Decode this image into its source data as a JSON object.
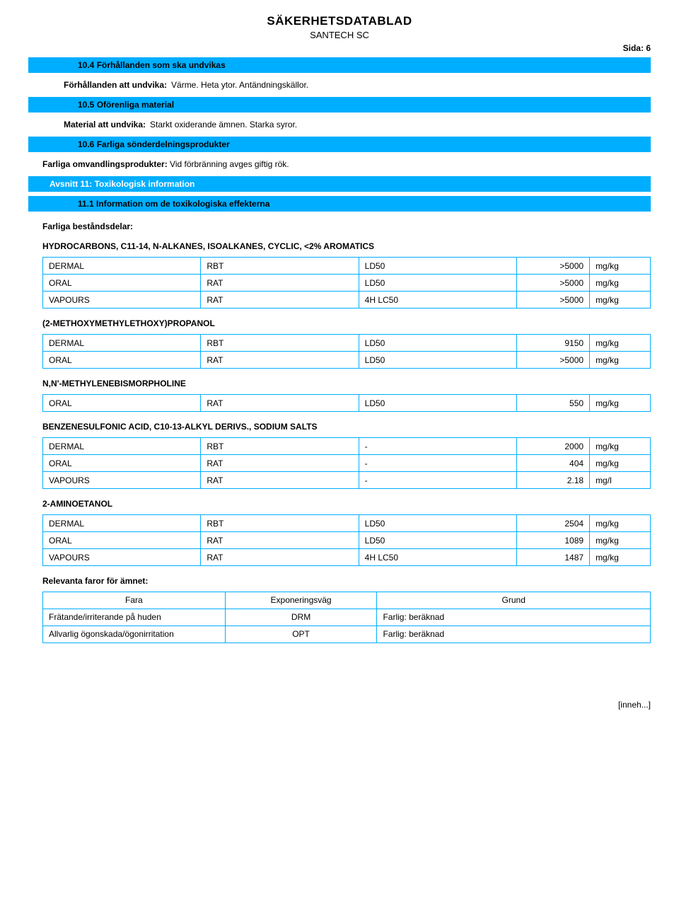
{
  "header": {
    "title": "SÄKERHETSDATABLAD",
    "subtitle": "SANTECH SC",
    "page_label": "Sida:",
    "page_number": "6"
  },
  "sections": {
    "s10_4": {
      "title": "10.4 Förhållanden som ska undvikas"
    },
    "s10_4_kv": {
      "label": "Förhållanden att undvika:",
      "value": "Värme. Heta ytor. Antändningskällor."
    },
    "s10_5": {
      "title": "10.5 Oförenliga material"
    },
    "s10_5_kv": {
      "label": "Material att undvika:",
      "value": "Starkt oxiderande ämnen. Starka syror."
    },
    "s10_6": {
      "title": "10.6 Farliga sönderdelningsprodukter"
    },
    "s10_6_kv": {
      "label": "Farliga omvandlingsprodukter:",
      "value": "Vid förbränning avges giftig rök."
    },
    "s11": {
      "title": "Avsnitt 11: Toxikologisk information"
    },
    "s11_1": {
      "title": "11.1 Information om de toxikologiska effekterna"
    }
  },
  "tox": {
    "components_label": "Farliga beståndsdelar:",
    "chemicals": [
      {
        "name": "HYDROCARBONS, C11-14, N-ALKANES, ISOALKANES, CYCLIC, <2% AROMATICS",
        "rows": [
          {
            "route": "DERMAL",
            "species": "RBT",
            "test": "LD50",
            "value": ">5000",
            "unit": "mg/kg"
          },
          {
            "route": "ORAL",
            "species": "RAT",
            "test": "LD50",
            "value": ">5000",
            "unit": "mg/kg"
          },
          {
            "route": "VAPOURS",
            "species": "RAT",
            "test": "4H LC50",
            "value": ">5000",
            "unit": "mg/kg"
          }
        ]
      },
      {
        "name": "(2-METHOXYMETHYLETHOXY)PROPANOL",
        "rows": [
          {
            "route": "DERMAL",
            "species": "RBT",
            "test": "LD50",
            "value": "9150",
            "unit": "mg/kg"
          },
          {
            "route": "ORAL",
            "species": "RAT",
            "test": "LD50",
            "value": ">5000",
            "unit": "mg/kg"
          }
        ]
      },
      {
        "name": "N,N'-METHYLENEBISMORPHOLINE",
        "rows": [
          {
            "route": "ORAL",
            "species": "RAT",
            "test": "LD50",
            "value": "550",
            "unit": "mg/kg"
          }
        ]
      },
      {
        "name": "BENZENESULFONIC ACID, C10-13-ALKYL DERIVS., SODIUM SALTS",
        "rows": [
          {
            "route": "DERMAL",
            "species": "RBT",
            "test": "-",
            "value": "2000",
            "unit": "mg/kg"
          },
          {
            "route": "ORAL",
            "species": "RAT",
            "test": "-",
            "value": "404",
            "unit": "mg/kg"
          },
          {
            "route": "VAPOURS",
            "species": "RAT",
            "test": "-",
            "value": "2.18",
            "unit": "mg/l"
          }
        ]
      },
      {
        "name": "2-AMINOETANOL",
        "rows": [
          {
            "route": "DERMAL",
            "species": "RBT",
            "test": "LD50",
            "value": "2504",
            "unit": "mg/kg"
          },
          {
            "route": "ORAL",
            "species": "RAT",
            "test": "LD50",
            "value": "1089",
            "unit": "mg/kg"
          },
          {
            "route": "VAPOURS",
            "species": "RAT",
            "test": "4H LC50",
            "value": "1487",
            "unit": "mg/kg"
          }
        ]
      }
    ],
    "hazard_label": "Relevanta faror för ämnet:",
    "hazard_headers": {
      "c1": "Fara",
      "c2": "Exponeringsväg",
      "c3": "Grund"
    },
    "hazard_rows": [
      {
        "hazard": "Frätande/irriterande på huden",
        "route": "DRM",
        "basis": "Farlig: beräknad"
      },
      {
        "hazard": "Allvarlig ögonskada/ögonirritation",
        "route": "OPT",
        "basis": "Farlig: beräknad"
      }
    ]
  },
  "footer": {
    "text": "[inneh...]"
  },
  "colors": {
    "bar": "#00aeff",
    "border": "#00aeff",
    "white": "#ffffff"
  }
}
